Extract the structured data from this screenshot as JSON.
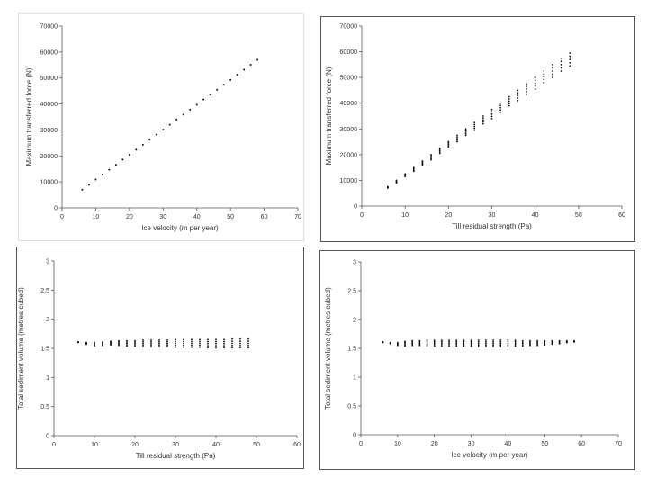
{
  "chart_data": [
    {
      "type": "scatter",
      "title": "",
      "xlabel": "Ice velocity (m per year)",
      "ylabel": "Maximum transferred force (N)",
      "xlim": [
        0,
        70
      ],
      "ylim": [
        0,
        70000
      ],
      "x_ticks": [
        "0",
        "10",
        "20",
        "30",
        "40",
        "50",
        "60",
        "70"
      ],
      "y_ticks": [
        "0",
        "10000",
        "20000",
        "30000",
        "40000",
        "50000",
        "60000",
        "70000"
      ],
      "grid": false,
      "series": [
        {
          "x": [
            6,
            8,
            10,
            12,
            14,
            16,
            18,
            20,
            22,
            24,
            26,
            28,
            30,
            32,
            34,
            36,
            38,
            40,
            42,
            44,
            46,
            48,
            50,
            52,
            54,
            56,
            58
          ],
          "y": [
            7000,
            8900,
            10900,
            12800,
            14700,
            16600,
            18600,
            20500,
            22400,
            24300,
            26300,
            28200,
            30100,
            32000,
            34000,
            35900,
            37800,
            39700,
            41700,
            43600,
            45500,
            47400,
            49300,
            51300,
            53200,
            55100,
            57000
          ]
        }
      ]
    },
    {
      "type": "scatter",
      "title": "",
      "xlabel": "Till residual strength (Pa)",
      "ylabel": "Maximum transferred force (N)",
      "xlim": [
        0,
        60
      ],
      "ylim": [
        0,
        70000
      ],
      "x_ticks": [
        "0",
        "10",
        "20",
        "30",
        "40",
        "50",
        "60"
      ],
      "y_ticks": [
        "0",
        "10000",
        "20000",
        "30000",
        "40000",
        "50000",
        "60000",
        "70000"
      ],
      "grid": false,
      "series": [
        {
          "x": [
            6,
            8,
            10,
            12,
            14,
            16,
            18,
            20,
            22,
            24,
            26,
            28,
            30,
            32,
            34,
            36,
            38,
            40,
            42,
            44,
            46,
            48
          ],
          "y_low": [
            7000,
            9000,
            11500,
            13500,
            16000,
            18000,
            20500,
            23000,
            25000,
            27500,
            29500,
            32000,
            34000,
            36500,
            39000,
            41000,
            43500,
            45500,
            48000,
            50000,
            52500,
            54500
          ],
          "y_high": [
            7500,
            10000,
            12500,
            15000,
            17500,
            20000,
            22500,
            25000,
            27500,
            30000,
            32500,
            35000,
            37500,
            40000,
            42500,
            45000,
            47500,
            50000,
            52500,
            55000,
            57500,
            59500
          ]
        }
      ]
    },
    {
      "type": "scatter",
      "title": "",
      "xlabel": "Till residual strength (Pa)",
      "ylabel": "Total sediment volume (metres cubed)",
      "xlim": [
        0,
        60
      ],
      "ylim": [
        0,
        3
      ],
      "x_ticks": [
        "0",
        "10",
        "20",
        "30",
        "40",
        "50",
        "60"
      ],
      "y_ticks": [
        "0",
        "0.5",
        "1",
        "1.5",
        "2",
        "2.5",
        "3"
      ],
      "grid": false,
      "series": [
        {
          "x": [
            6,
            8,
            10,
            12,
            14,
            16,
            18,
            20,
            22,
            24,
            26,
            28,
            30,
            32,
            34,
            36,
            38,
            40,
            42,
            44,
            46,
            48
          ],
          "y_low": [
            1.6,
            1.57,
            1.54,
            1.55,
            1.56,
            1.55,
            1.54,
            1.54,
            1.53,
            1.53,
            1.53,
            1.53,
            1.52,
            1.52,
            1.52,
            1.52,
            1.51,
            1.51,
            1.51,
            1.51,
            1.51,
            1.51
          ],
          "y_high": [
            1.61,
            1.6,
            1.6,
            1.61,
            1.62,
            1.63,
            1.63,
            1.63,
            1.64,
            1.64,
            1.64,
            1.64,
            1.65,
            1.65,
            1.65,
            1.65,
            1.65,
            1.65,
            1.65,
            1.66,
            1.66,
            1.66
          ]
        }
      ]
    },
    {
      "type": "scatter",
      "title": "",
      "xlabel": "Ice velocity (m per year)",
      "ylabel": "Total sediment volume (metres cubed)",
      "xlim": [
        0,
        70
      ],
      "ylim": [
        0,
        3
      ],
      "x_ticks": [
        "0",
        "10",
        "20",
        "30",
        "40",
        "50",
        "60",
        "70"
      ],
      "y_ticks": [
        "0",
        "0.5",
        "1",
        "1.5",
        "2",
        "2.5",
        "3"
      ],
      "grid": false,
      "series": [
        {
          "x": [
            6,
            8,
            10,
            12,
            14,
            16,
            18,
            20,
            22,
            24,
            26,
            28,
            30,
            32,
            34,
            36,
            38,
            40,
            42,
            44,
            46,
            48,
            50,
            52,
            54,
            56,
            58
          ],
          "y_low": [
            1.6,
            1.58,
            1.55,
            1.54,
            1.55,
            1.55,
            1.55,
            1.54,
            1.54,
            1.54,
            1.54,
            1.54,
            1.54,
            1.53,
            1.53,
            1.53,
            1.53,
            1.53,
            1.54,
            1.54,
            1.55,
            1.55,
            1.56,
            1.57,
            1.58,
            1.6,
            1.61
          ],
          "y_high": [
            1.61,
            1.6,
            1.6,
            1.62,
            1.63,
            1.63,
            1.64,
            1.64,
            1.64,
            1.64,
            1.64,
            1.64,
            1.64,
            1.64,
            1.64,
            1.64,
            1.64,
            1.64,
            1.64,
            1.63,
            1.63,
            1.63,
            1.63,
            1.63,
            1.63,
            1.63,
            1.63
          ]
        }
      ]
    }
  ]
}
